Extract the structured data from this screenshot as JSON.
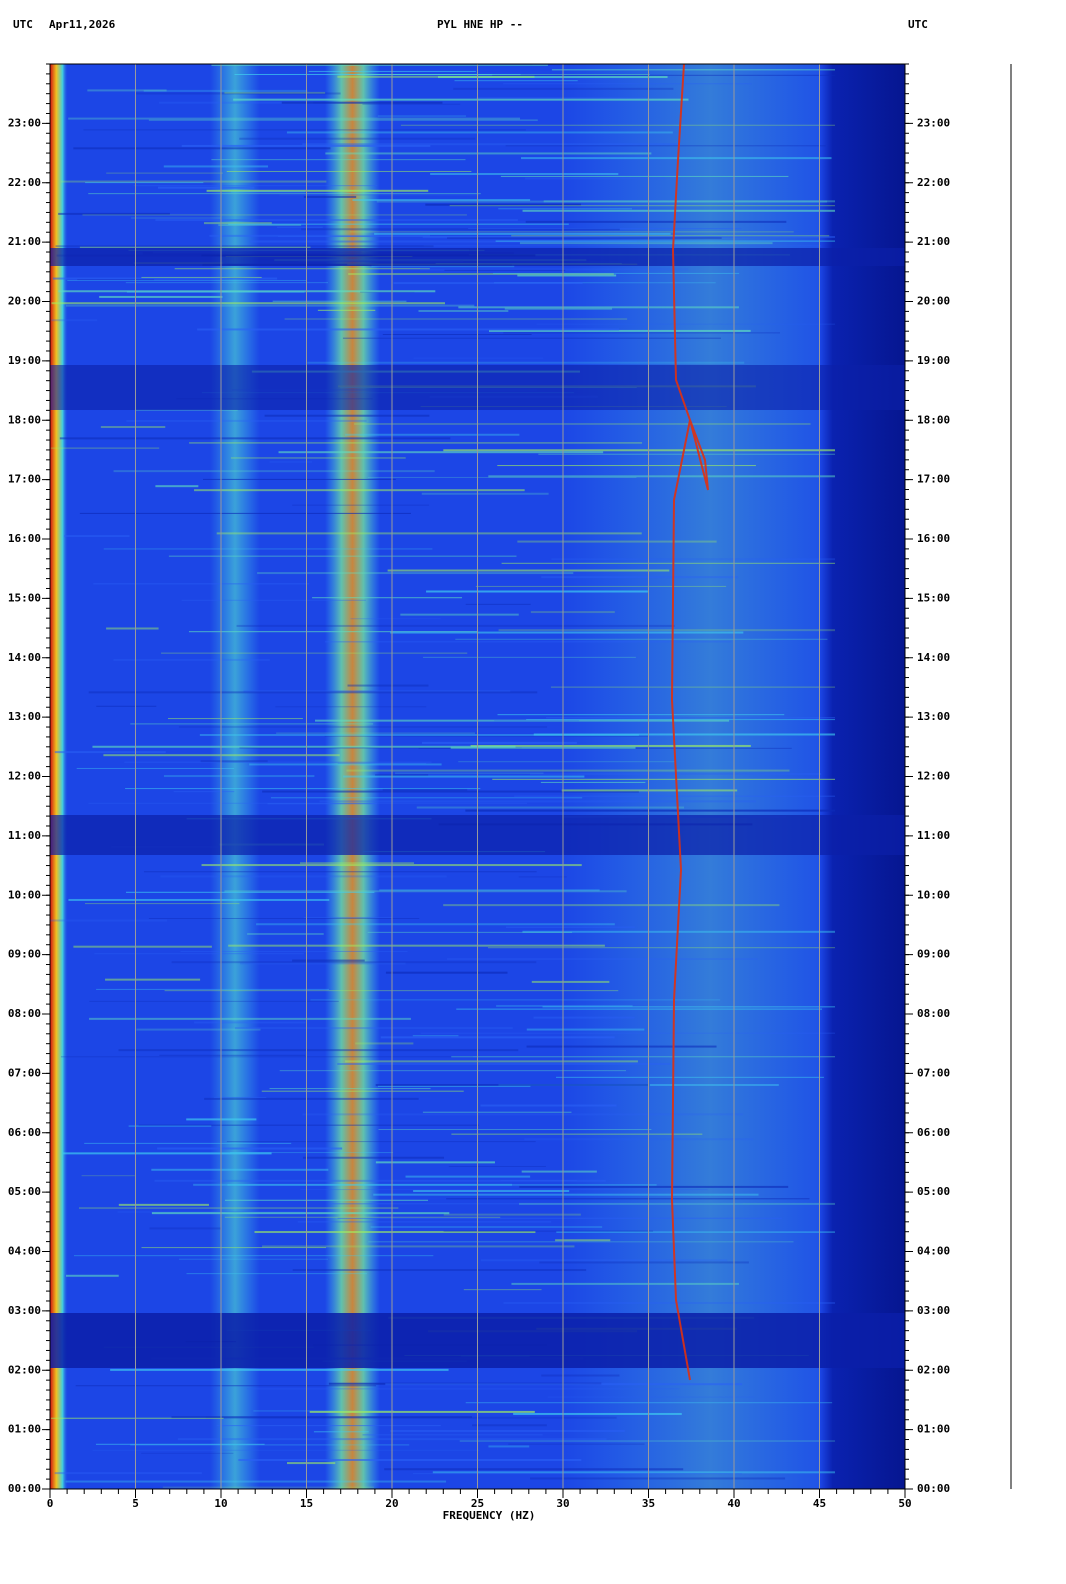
{
  "chart_data": {
    "type": "spectrogram",
    "header": {
      "left_label": "UTC",
      "date": "Apr11,2026",
      "title": "PYL HNE HP --",
      "right_label": "UTC"
    },
    "xlabel": "FREQUENCY (HZ)",
    "xlim": [
      0,
      50
    ],
    "xticks": [
      0,
      5,
      10,
      15,
      20,
      25,
      30,
      35,
      40,
      45,
      50
    ],
    "ylim": [
      0,
      24
    ],
    "yticks": [
      {
        "value": 0,
        "label": "00:00"
      },
      {
        "value": 1,
        "label": "01:00"
      },
      {
        "value": 2,
        "label": "02:00"
      },
      {
        "value": 3,
        "label": "03:00"
      },
      {
        "value": 4,
        "label": "04:00"
      },
      {
        "value": 5,
        "label": "05:00"
      },
      {
        "value": 6,
        "label": "06:00"
      },
      {
        "value": 7,
        "label": "07:00"
      },
      {
        "value": 8,
        "label": "08:00"
      },
      {
        "value": 9,
        "label": "09:00"
      },
      {
        "value": 10,
        "label": "10:00"
      },
      {
        "value": 11,
        "label": "11:00"
      },
      {
        "value": 12,
        "label": "12:00"
      },
      {
        "value": 13,
        "label": "13:00"
      },
      {
        "value": 14,
        "label": "14:00"
      },
      {
        "value": 15,
        "label": "15:00"
      },
      {
        "value": 16,
        "label": "16:00"
      },
      {
        "value": 17,
        "label": "17:00"
      },
      {
        "value": 18,
        "label": "18:00"
      },
      {
        "value": 19,
        "label": "19:00"
      },
      {
        "value": 20,
        "label": "20:00"
      },
      {
        "value": 21,
        "label": "21:00"
      },
      {
        "value": 22,
        "label": "22:00"
      },
      {
        "value": 23,
        "label": "23:00"
      }
    ],
    "grid": true,
    "grid_color": "#9a9a9a"
  }
}
